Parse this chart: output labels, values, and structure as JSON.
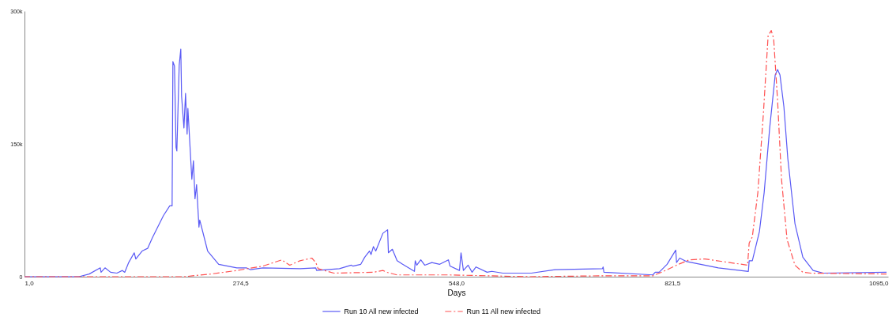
{
  "chart_data": {
    "type": "line",
    "xlabel": "Days",
    "xlim": [
      1,
      1095
    ],
    "xticks": [
      {
        "value": 1,
        "label": "1,0"
      },
      {
        "value": 274.5,
        "label": "274,5"
      },
      {
        "value": 548,
        "label": "548,0"
      },
      {
        "value": 821.5,
        "label": "821,5"
      },
      {
        "value": 1095,
        "label": "1095,0"
      }
    ],
    "ylim": [
      0,
      300000
    ],
    "yticks": [
      0,
      {
        "value": 150000,
        "label": "150k"
      },
      {
        "value": 300000,
        "label": "300k"
      }
    ],
    "legend": "bottom",
    "series": [
      {
        "name": "Run 10 All new infected",
        "color": "#5a5af5",
        "line_style": "solid",
        "x": [
          1,
          70,
          83,
          97,
          98,
          103,
          110,
          118,
          125,
          128,
          133,
          140,
          142,
          150,
          157,
          163,
          177,
          185,
          188,
          189,
          191,
          193,
          194,
          197,
          199,
          200,
          203,
          205,
          207,
          208,
          213,
          215,
          217,
          219,
          222,
          223,
          233,
          247,
          270,
          282,
          287,
          303,
          350,
          370,
          371,
          400,
          415,
          417,
          427,
          432,
          438,
          440,
          443,
          446,
          455,
          461,
          462,
          467,
          473,
          480,
          495,
          496,
          498,
          503,
          508,
          517,
          527,
          538,
          540,
          552,
          554,
          557,
          563,
          568,
          573,
          587,
          593,
          607,
          643,
          673,
          733,
          734,
          735,
          797,
          800,
          805,
          815,
          826,
          827,
          831,
          840,
          880,
          918,
          919,
          923,
          932,
          938,
          945,
          952,
          955,
          958,
          963,
          968,
          977,
          987,
          1000,
          1013,
          1093
        ],
        "values": [
          0,
          0,
          3000,
          10000,
          5000,
          10000,
          5000,
          4000,
          7000,
          5000,
          16000,
          27000,
          20000,
          29000,
          32000,
          44000,
          69000,
          80000,
          80000,
          243000,
          238000,
          146000,
          142000,
          239000,
          257000,
          204000,
          168000,
          207000,
          161000,
          190000,
          110000,
          131000,
          88000,
          104000,
          56000,
          64000,
          29000,
          14000,
          10000,
          10000,
          8000,
          10000,
          9000,
          10000,
          7000,
          9000,
          13000,
          12000,
          14000,
          22000,
          29000,
          25000,
          34000,
          29000,
          49000,
          53000,
          27000,
          31000,
          18000,
          14000,
          6000,
          18000,
          13000,
          19000,
          13000,
          16000,
          14000,
          19000,
          12000,
          7000,
          27000,
          7000,
          13000,
          5000,
          11000,
          5000,
          6000,
          4000,
          4000,
          8000,
          9000,
          11000,
          5000,
          2000,
          5000,
          5000,
          14000,
          30000,
          16000,
          21000,
          17000,
          10000,
          6000,
          18000,
          18000,
          51000,
          95000,
          168000,
          228000,
          234000,
          228000,
          192000,
          133000,
          60000,
          22000,
          7000,
          4000,
          5000
        ]
      },
      {
        "name": "Run 11 All new infected",
        "color": "#ff5050",
        "line_style": "dashed",
        "x": [
          1,
          150,
          203,
          237,
          270,
          303,
          327,
          337,
          350,
          365,
          370,
          373,
          393,
          443,
          455,
          460,
          473,
          540,
          640,
          733,
          797,
          813,
          827,
          843,
          863,
          917,
          919,
          923,
          930,
          937,
          943,
          947,
          950,
          955,
          960,
          967,
          977,
          987,
          997,
          1093
        ],
        "values": [
          0,
          0,
          0,
          3000,
          7000,
          12000,
          19000,
          13000,
          18000,
          21000,
          16000,
          9000,
          4000,
          5000,
          7000,
          5000,
          2000,
          2000,
          0,
          1000,
          1000,
          7000,
          13000,
          19000,
          20000,
          13000,
          38000,
          45000,
          95000,
          184000,
          272000,
          278000,
          269000,
          199000,
          110000,
          42000,
          13000,
          5000,
          4000,
          3000
        ]
      }
    ]
  }
}
